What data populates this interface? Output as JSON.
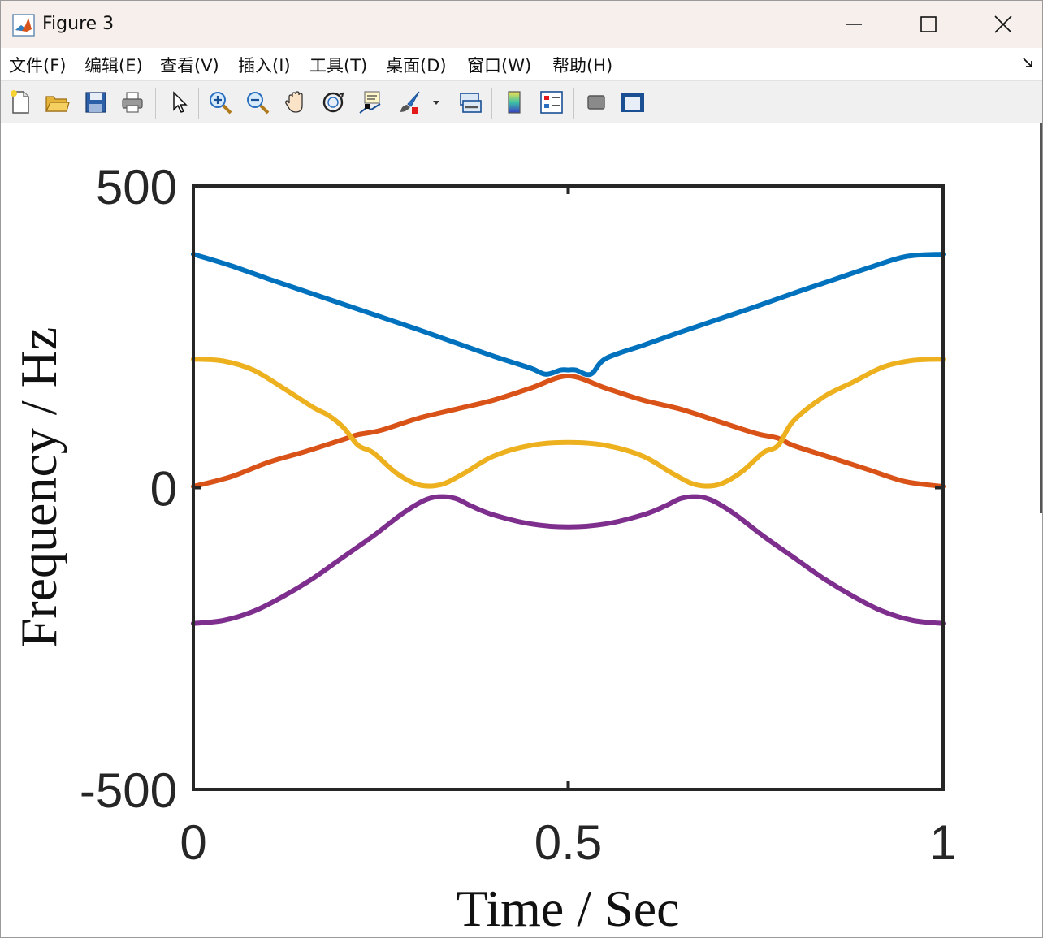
{
  "window": {
    "title": "Figure 3",
    "controls": {
      "minimize": "minimize",
      "maximize": "maximize",
      "close": "close"
    }
  },
  "menu": {
    "items": [
      "文件(F)",
      "编辑(E)",
      "查看(V)",
      "插入(I)",
      "工具(T)",
      "桌面(D)",
      "窗口(W)",
      "帮助(H)"
    ]
  },
  "toolbar": {
    "icons": [
      "new-figure-icon",
      "open-file-icon",
      "save-icon",
      "print-icon",
      "pointer-icon",
      "zoom-in-icon",
      "zoom-out-icon",
      "pan-hand-icon",
      "rotate-3d-icon",
      "data-cursor-icon",
      "brush-icon",
      "link-plot-icon",
      "colorbar-icon",
      "legend-icon",
      "hide-plot-tools-icon",
      "show-plot-tools-icon"
    ]
  },
  "chart_data": {
    "type": "line",
    "title": "",
    "xlabel": "Time / Sec",
    "ylabel": "Frequency / Hz",
    "xlim": [
      0,
      1
    ],
    "ylim": [
      -500,
      500
    ],
    "xticks": [
      0,
      0.5,
      1
    ],
    "xtick_labels": [
      "0",
      "0.5",
      "1"
    ],
    "yticks": [
      -500,
      0,
      500
    ],
    "ytick_labels": [
      "-500",
      "0",
      "500"
    ],
    "grid": false,
    "legend": "none",
    "series": [
      {
        "color": "#0072BD",
        "x": [
          0,
          0.05,
          0.1,
          0.15,
          0.2,
          0.25,
          0.3,
          0.35,
          0.4,
          0.45,
          0.47,
          0.49,
          0.5,
          0.51,
          0.53,
          0.55,
          0.6,
          0.65,
          0.7,
          0.75,
          0.8,
          0.85,
          0.9,
          0.95,
          1
        ],
        "y": [
          387,
          368,
          346,
          325,
          304,
          283,
          262,
          240,
          218,
          198,
          188,
          195,
          195,
          195,
          188,
          214,
          236,
          258,
          279,
          300,
          322,
          343,
          364,
          383,
          387
        ]
      },
      {
        "color": "#D95319",
        "x": [
          0,
          0.05,
          0.1,
          0.15,
          0.2,
          0.22,
          0.25,
          0.3,
          0.35,
          0.4,
          0.45,
          0.5,
          0.55,
          0.6,
          0.65,
          0.7,
          0.75,
          0.78,
          0.8,
          0.85,
          0.9,
          0.95,
          1
        ],
        "y": [
          2,
          18,
          42,
          60,
          80,
          88,
          95,
          115,
          130,
          145,
          165,
          185,
          165,
          145,
          130,
          110,
          90,
          82,
          70,
          50,
          30,
          10,
          2
        ]
      },
      {
        "color": "#EDB120",
        "x": [
          0,
          0.04,
          0.08,
          0.12,
          0.16,
          0.18,
          0.2,
          0.22,
          0.24,
          0.27,
          0.3,
          0.33,
          0.36,
          0.4,
          0.45,
          0.5,
          0.55,
          0.6,
          0.64,
          0.67,
          0.7,
          0.73,
          0.76,
          0.78,
          0.8,
          0.84,
          0.88,
          0.92,
          0.96,
          1
        ],
        "y": [
          213,
          210,
          195,
          165,
          133,
          120,
          100,
          70,
          58,
          25,
          5,
          5,
          23,
          52,
          70,
          75,
          70,
          52,
          23,
          5,
          5,
          25,
          58,
          70,
          110,
          150,
          175,
          200,
          211,
          213
        ]
      },
      {
        "color": "#7E2F8E",
        "x": [
          0,
          0.04,
          0.08,
          0.12,
          0.16,
          0.2,
          0.24,
          0.28,
          0.31,
          0.33,
          0.35,
          0.37,
          0.4,
          0.45,
          0.5,
          0.55,
          0.6,
          0.63,
          0.65,
          0.67,
          0.69,
          0.72,
          0.76,
          0.8,
          0.84,
          0.88,
          0.92,
          0.96,
          1
        ],
        "y": [
          -225,
          -220,
          -205,
          -180,
          -150,
          -115,
          -80,
          -42,
          -20,
          -15,
          -18,
          -30,
          -45,
          -60,
          -65,
          -60,
          -45,
          -30,
          -18,
          -15,
          -20,
          -42,
          -80,
          -115,
          -150,
          -180,
          -205,
          -220,
          -225
        ]
      }
    ]
  }
}
